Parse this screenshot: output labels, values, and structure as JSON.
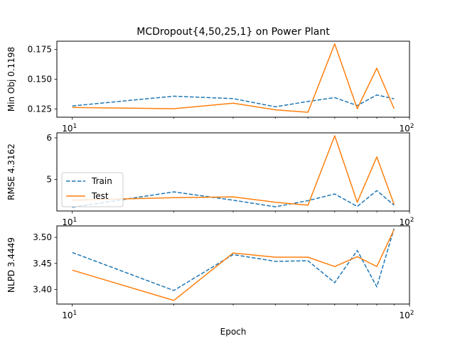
{
  "title": "MCDropout{4,50,25,1} on Power Plant",
  "colors": {
    "train": "#1f77b4",
    "test": "#ff7f0e"
  },
  "legend": {
    "train_label": "Train",
    "test_label": "Test",
    "placement": "center-left of middle panel"
  },
  "x_tick_labels": {
    "left_base": "10",
    "left_exp": "1",
    "right_base": "10",
    "right_exp": "2"
  },
  "chart_data": [
    {
      "type": "line",
      "title": "MCDropout{4,50,25,1} on Power Plant",
      "xlabel": "",
      "ylabel": "Min Obj 0.1198",
      "xscale": "log",
      "xlim": [
        9,
        100
      ],
      "ylim": [
        0.118,
        0.182
      ],
      "yticks": [
        0.125,
        0.15,
        0.175
      ],
      "ytick_labels": [
        "0.125",
        "0.150",
        "0.175"
      ],
      "x": [
        10,
        20,
        30,
        40,
        50,
        60,
        70,
        80,
        90
      ],
      "series": [
        {
          "name": "Train",
          "style": "dashed",
          "values": [
            0.1275,
            0.1357,
            0.1337,
            0.1268,
            0.1313,
            0.1345,
            0.1278,
            0.1367,
            0.1335
          ]
        },
        {
          "name": "Test",
          "style": "solid",
          "values": [
            0.1262,
            0.1252,
            0.1298,
            0.1242,
            0.1222,
            0.1798,
            0.1252,
            0.1593,
            0.1252
          ]
        }
      ]
    },
    {
      "type": "line",
      "xlabel": "",
      "ylabel": "RMSE 4.3162",
      "xscale": "log",
      "xlim": [
        9,
        100
      ],
      "ylim": [
        4.24,
        6.12
      ],
      "yticks": [
        5,
        6
      ],
      "ytick_labels": [
        "5",
        "6"
      ],
      "x": [
        10,
        20,
        30,
        40,
        50,
        60,
        70,
        80,
        90
      ],
      "series": [
        {
          "name": "Train",
          "style": "dashed",
          "values": [
            4.33,
            4.7,
            4.5,
            4.34,
            4.49,
            4.65,
            4.35,
            4.73,
            4.38
          ]
        },
        {
          "name": "Test",
          "style": "solid",
          "values": [
            4.5,
            4.56,
            4.58,
            4.45,
            4.38,
            6.05,
            4.45,
            5.54,
            4.4
          ]
        }
      ]
    },
    {
      "type": "line",
      "xlabel": "Epoch",
      "ylabel": "NLPD 3.4449",
      "xscale": "log",
      "xlim": [
        9,
        100
      ],
      "ylim": [
        3.372,
        3.522
      ],
      "yticks": [
        3.4,
        3.45,
        3.5
      ],
      "ytick_labels": [
        "3.40",
        "3.45",
        "3.50"
      ],
      "x": [
        10,
        20,
        30,
        40,
        50,
        60,
        70,
        80,
        90
      ],
      "series": [
        {
          "name": "Train",
          "style": "dashed",
          "values": [
            3.471,
            3.398,
            3.467,
            3.454,
            3.455,
            3.413,
            3.475,
            3.405,
            3.517
          ]
        },
        {
          "name": "Test",
          "style": "solid",
          "values": [
            3.437,
            3.379,
            3.47,
            3.462,
            3.462,
            3.444,
            3.463,
            3.444,
            3.515
          ]
        }
      ]
    }
  ]
}
